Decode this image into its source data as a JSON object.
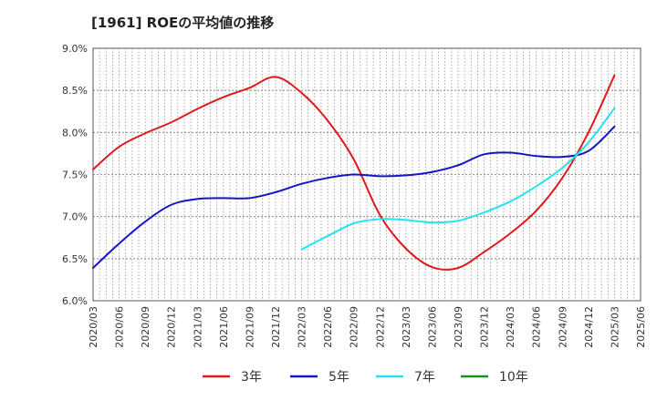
{
  "chart_data": {
    "type": "line",
    "title": "[1961]  ROEの平均値の推移",
    "xlabel": "",
    "ylabel": "",
    "x": [
      "2020/03",
      "2020/06",
      "2020/09",
      "2020/12",
      "2021/03",
      "2021/06",
      "2021/09",
      "2021/12",
      "2022/03",
      "2022/06",
      "2022/09",
      "2022/12",
      "2023/03",
      "2023/06",
      "2023/09",
      "2023/12",
      "2024/03",
      "2024/06",
      "2024/09",
      "2024/12",
      "2025/03",
      "2025/06"
    ],
    "y_ticks": [
      "6.0%",
      "6.5%",
      "7.0%",
      "7.5%",
      "8.0%",
      "8.5%",
      "9.0%"
    ],
    "ylim": [
      6.0,
      9.0
    ],
    "grid": true,
    "legend_position": "bottom",
    "series": [
      {
        "name": "3年",
        "color": "#e0191b",
        "values": [
          7.56,
          7.83,
          7.99,
          8.12,
          8.28,
          8.42,
          8.53,
          8.66,
          8.47,
          8.14,
          7.68,
          7.02,
          6.62,
          6.4,
          6.39,
          6.58,
          6.8,
          7.07,
          7.46,
          8.0,
          8.68,
          null
        ]
      },
      {
        "name": "5年",
        "color": "#1515c8",
        "values": [
          6.39,
          6.68,
          6.94,
          7.14,
          7.21,
          7.22,
          7.22,
          7.29,
          7.39,
          7.46,
          7.5,
          7.48,
          7.49,
          7.53,
          7.61,
          7.74,
          7.76,
          7.72,
          7.71,
          7.78,
          8.07,
          null
        ]
      },
      {
        "name": "7年",
        "color": "#22e5f0",
        "values": [
          null,
          null,
          null,
          null,
          null,
          null,
          null,
          null,
          6.61,
          6.77,
          6.92,
          6.97,
          6.96,
          6.93,
          6.95,
          7.05,
          7.18,
          7.36,
          7.58,
          7.88,
          8.29,
          null
        ]
      },
      {
        "name": "10年",
        "color": "#1a8c1a",
        "values": [
          null,
          null,
          null,
          null,
          null,
          null,
          null,
          null,
          null,
          null,
          null,
          null,
          null,
          null,
          null,
          null,
          null,
          null,
          null,
          null,
          null,
          null
        ]
      }
    ]
  }
}
